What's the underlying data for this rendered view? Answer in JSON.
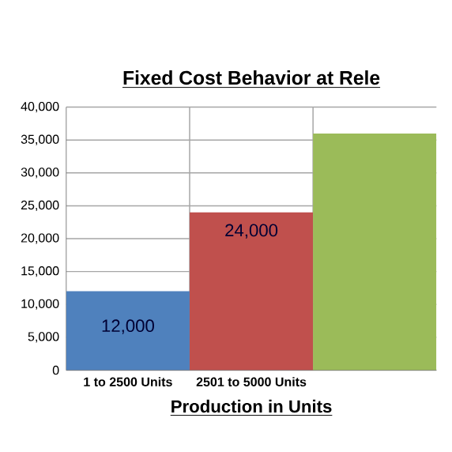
{
  "chart_data": {
    "type": "bar",
    "title": "Fixed Cost Behavior at Rele",
    "xlabel": "Production in Units",
    "categories": [
      "1 to 2500 Units",
      "2501 to 5000 Units",
      null
    ],
    "values": [
      12000,
      24000,
      36000
    ],
    "colors": [
      "#4f81bd",
      "#c0504d",
      "#9bbb59"
    ],
    "value_labels": [
      "12,000",
      "24,000",
      null
    ],
    "ylim": [
      0,
      40000
    ],
    "yticks": [
      0,
      {
        "value": 5000,
        "label": "5,000"
      },
      {
        "value": 10000,
        "label": "10,000"
      },
      {
        "value": 15000,
        "label": "15,000"
      },
      {
        "value": 20000,
        "label": "20,000"
      },
      {
        "value": 25000,
        "label": "25,000"
      },
      {
        "value": 30000,
        "label": "30,000"
      },
      {
        "value": 35000,
        "label": "35,000"
      },
      {
        "value": 40000,
        "label": "40,000"
      }
    ],
    "grid": true
  }
}
